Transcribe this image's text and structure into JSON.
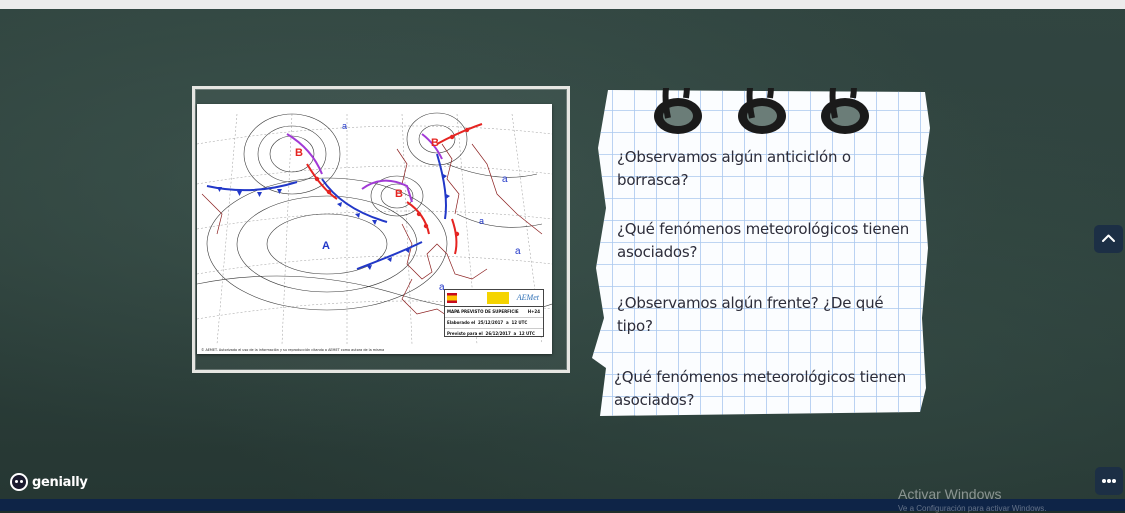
{
  "questions": [
    "¿Observamos algún anticiclón o borrasca?",
    "¿Qué fenómenos meteorológicos tienen asociados?",
    "¿Observamos algún frente? ¿De qué tipo?",
    "¿Qué fenómenos meteorológicos tienen asociados?"
  ],
  "map": {
    "labels": {
      "b1": "B",
      "b2": "B",
      "b3": "B",
      "a_big": "A",
      "a1": "a",
      "a2": "a",
      "a3": "a",
      "a4": "a",
      "a5": "a"
    },
    "legend": {
      "brand": "AEMet",
      "title": "MAPA PREVISTO DE SUPERFICIE",
      "title_code": "H+24",
      "row1_label": "Elaborado el",
      "row1_date": "25/12/2017",
      "row1_a": "a",
      "row1_time": "12 UTC",
      "row2_label": "Previsto para el",
      "row2_date": "26/12/2017",
      "row2_a": "a",
      "row2_time": "12 UTC"
    },
    "footnote": "© AEMET. Autorizado el uso de la información y su reproducción citando a AEMET como autora de la misma"
  },
  "logo": {
    "text": "genially"
  },
  "watermark": {
    "title": "Activar Windows",
    "subtitle": "Ve a Configuración para activar Windows."
  },
  "colors": {
    "front_red": "#e52421",
    "front_blue": "#2238c8",
    "occluded": "#a23ad6",
    "board": "#2c3f3a"
  }
}
